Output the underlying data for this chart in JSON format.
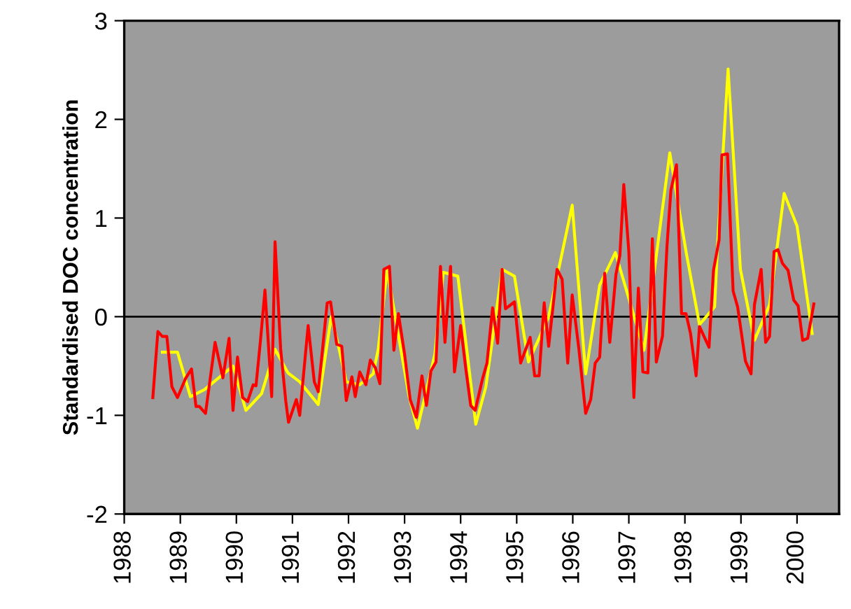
{
  "chart_data": {
    "type": "line",
    "ylabel": "Standardised DOC concentration",
    "xlim": [
      1988,
      2000.75
    ],
    "xticks": [
      1988,
      1989,
      1990,
      1991,
      1992,
      1993,
      1994,
      1995,
      1996,
      1997,
      1998,
      1999,
      2000
    ],
    "ylim": [
      -2,
      3
    ],
    "yticks": [
      -2,
      -1,
      0,
      1,
      2,
      3
    ],
    "grid": false,
    "legend": false,
    "marker": "none",
    "line_style": "solid",
    "ref_lines": [
      {
        "axis": "y",
        "value": 0,
        "color": "#000000"
      }
    ],
    "series": [
      {
        "color": "#ffff00",
        "x": [
          1988.68,
          1988.95,
          1989.18,
          1989.43,
          1989.94,
          1990.17,
          1990.45,
          1990.69,
          1990.92,
          1991.13,
          1991.46,
          1991.69,
          1991.81,
          1991.96,
          1992.2,
          1992.44,
          1992.53,
          1992.69,
          1992.79,
          1993.08,
          1993.23,
          1993.54,
          1993.69,
          1993.95,
          1994.27,
          1994.45,
          1994.74,
          1994.96,
          1995.21,
          1995.57,
          1995.99,
          1996.23,
          1996.48,
          1996.76,
          1997.27,
          1997.73,
          1998.02,
          1998.26,
          1998.53,
          1998.59,
          1998.77,
          1998.99,
          1999.24,
          1999.51,
          1999.77,
          2000.0,
          2000.27
        ],
        "values": [
          -0.36,
          -0.36,
          -0.81,
          -0.74,
          -0.5,
          -0.95,
          -0.78,
          -0.33,
          -0.57,
          -0.66,
          -0.89,
          0.0,
          -0.27,
          -0.66,
          -0.69,
          -0.58,
          -0.33,
          0.48,
          0.14,
          -0.81,
          -1.13,
          -0.38,
          0.45,
          0.41,
          -1.09,
          -0.71,
          0.48,
          0.41,
          -0.46,
          0.0,
          1.13,
          -0.58,
          0.32,
          0.65,
          -0.34,
          1.66,
          0.66,
          -0.08,
          0.1,
          0.81,
          2.51,
          0.48,
          -0.24,
          0.12,
          1.25,
          0.92,
          -0.17
        ]
      },
      {
        "color": "#ff0000",
        "x": [
          1988.51,
          1988.6,
          1988.68,
          1988.76,
          1988.85,
          1988.95,
          1989.09,
          1989.2,
          1989.28,
          1989.34,
          1989.45,
          1989.62,
          1989.76,
          1989.87,
          1989.94,
          1990.02,
          1990.11,
          1990.2,
          1990.3,
          1990.35,
          1990.43,
          1990.51,
          1990.63,
          1990.69,
          1990.79,
          1990.88,
          1990.93,
          1991.07,
          1991.13,
          1991.28,
          1991.39,
          1991.46,
          1991.62,
          1991.68,
          1991.79,
          1991.88,
          1991.96,
          1992.06,
          1992.12,
          1992.2,
          1992.31,
          1992.39,
          1992.48,
          1992.56,
          1992.63,
          1992.73,
          1992.81,
          1992.89,
          1993.0,
          1993.1,
          1993.21,
          1993.31,
          1993.39,
          1993.47,
          1993.56,
          1993.64,
          1993.72,
          1993.82,
          1993.89,
          1994.0,
          1994.09,
          1994.18,
          1994.26,
          1994.39,
          1994.47,
          1994.57,
          1994.66,
          1994.74,
          1994.8,
          1994.96,
          1995.07,
          1995.24,
          1995.32,
          1995.4,
          1995.49,
          1995.57,
          1995.72,
          1995.81,
          1995.91,
          1995.99,
          1996.11,
          1996.23,
          1996.32,
          1996.4,
          1996.48,
          1996.57,
          1996.66,
          1996.77,
          1996.84,
          1996.91,
          1997.0,
          1997.09,
          1997.17,
          1997.25,
          1997.34,
          1997.42,
          1997.49,
          1997.6,
          1997.68,
          1997.75,
          1997.85,
          1997.94,
          1998.02,
          1998.1,
          1998.2,
          1998.26,
          1998.43,
          1998.51,
          1998.61,
          1998.66,
          1998.76,
          1998.86,
          1998.94,
          1999.08,
          1999.18,
          1999.24,
          1999.36,
          1999.44,
          1999.51,
          1999.59,
          1999.66,
          1999.74,
          1999.84,
          1999.94,
          2000.02,
          2000.1,
          2000.19,
          2000.3
        ],
        "values": [
          -0.82,
          -0.15,
          -0.2,
          -0.2,
          -0.71,
          -0.82,
          -0.63,
          -0.53,
          -0.91,
          -0.91,
          -0.98,
          -0.26,
          -0.62,
          -0.22,
          -0.95,
          -0.41,
          -0.82,
          -0.86,
          -0.69,
          -0.7,
          -0.24,
          0.27,
          -0.81,
          0.76,
          -0.33,
          -0.85,
          -1.07,
          -0.84,
          -1.0,
          -0.09,
          -0.66,
          -0.76,
          0.14,
          0.15,
          -0.28,
          -0.3,
          -0.85,
          -0.61,
          -0.81,
          -0.56,
          -0.69,
          -0.44,
          -0.52,
          -0.68,
          0.48,
          0.51,
          -0.34,
          0.03,
          -0.38,
          -0.84,
          -1.02,
          -0.6,
          -0.9,
          -0.55,
          -0.46,
          0.51,
          -0.26,
          0.51,
          -0.56,
          -0.09,
          -0.52,
          -0.9,
          -0.95,
          -0.63,
          -0.47,
          0.09,
          -0.27,
          0.48,
          0.08,
          0.15,
          -0.47,
          -0.21,
          -0.6,
          -0.6,
          0.14,
          -0.3,
          0.48,
          0.38,
          -0.47,
          0.22,
          -0.33,
          -0.98,
          -0.84,
          -0.47,
          -0.41,
          0.44,
          -0.26,
          0.43,
          0.62,
          1.34,
          0.66,
          -0.82,
          0.29,
          -0.56,
          -0.57,
          0.79,
          -0.46,
          -0.2,
          0.71,
          1.28,
          1.54,
          0.03,
          0.03,
          -0.17,
          -0.6,
          -0.1,
          -0.31,
          0.47,
          0.78,
          1.64,
          1.65,
          0.26,
          0.1,
          -0.45,
          -0.58,
          0.12,
          0.48,
          -0.26,
          -0.2,
          0.66,
          0.68,
          0.54,
          0.47,
          0.17,
          0.11,
          -0.24,
          -0.22,
          0.13
        ]
      }
    ]
  }
}
